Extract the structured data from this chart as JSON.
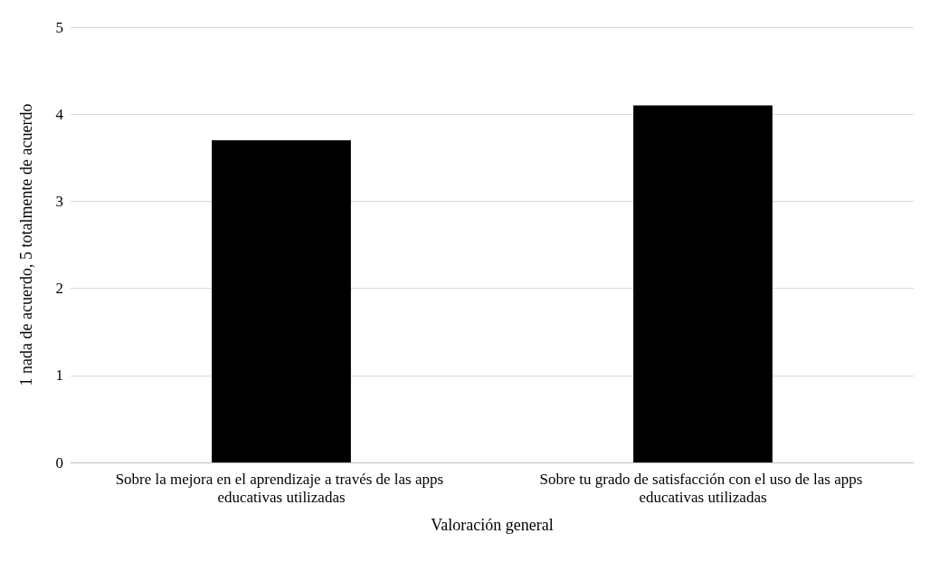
{
  "chart_data": {
    "type": "bar",
    "xlabel": "Valoración general",
    "ylabel": "1 nada de acuerdo, 5 totalmente de acuerdo",
    "categories": [
      "Sobre la mejora en el aprendizaje a través de las apps educativas utilizadas",
      "Sobre tu grado de satisfacción con el uso de las apps educativas utilizadas"
    ],
    "values": [
      3.7,
      4.1
    ],
    "color": "#000000",
    "ylim": [
      0,
      5
    ],
    "yticks": [
      0,
      1,
      2,
      3,
      4,
      5
    ],
    "grid": "y"
  }
}
